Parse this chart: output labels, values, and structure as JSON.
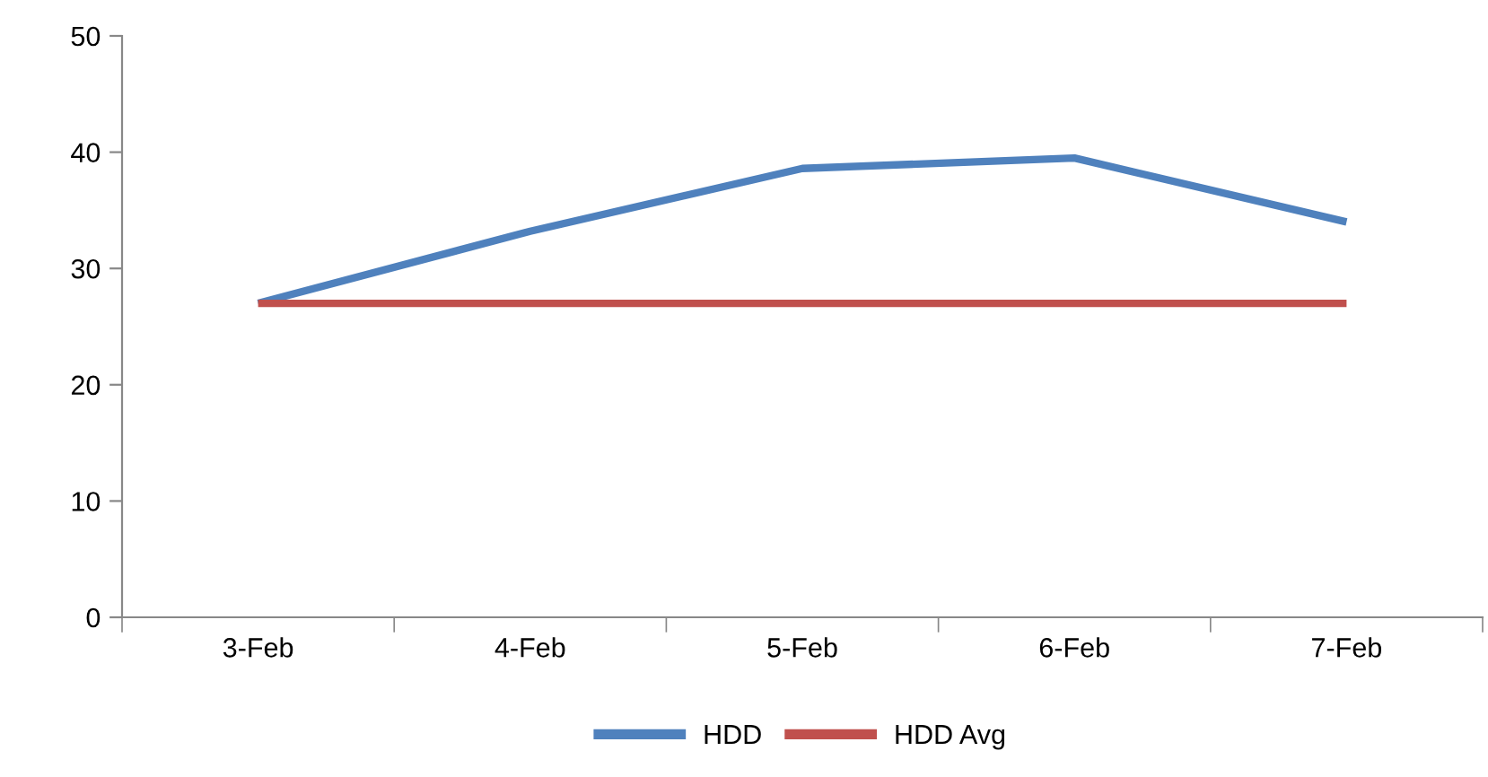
{
  "chart_data": {
    "type": "line",
    "categories": [
      "3-Feb",
      "4-Feb",
      "5-Feb",
      "6-Feb",
      "7-Feb"
    ],
    "series": [
      {
        "name": "HDD",
        "color": "#4f81bd",
        "values": [
          27,
          33.2,
          38.6,
          39.5,
          34
        ]
      },
      {
        "name": "HDD Avg",
        "color": "#c0504d",
        "values": [
          27,
          27,
          27,
          27,
          27
        ]
      }
    ],
    "ylim": [
      0,
      50
    ],
    "yticks": [
      0,
      10,
      20,
      30,
      40,
      50
    ],
    "grid": false,
    "legend": "bottom",
    "marker": "none",
    "line_style": "solid"
  }
}
